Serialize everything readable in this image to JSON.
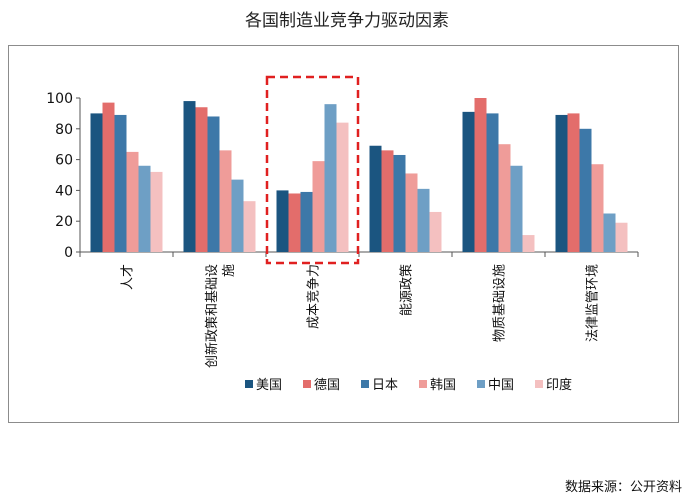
{
  "title": "各国制造业竞争力驱动因素",
  "source": "数据来源：公开资料",
  "chart_data": {
    "type": "bar",
    "categories": [
      "人才",
      "创新政策和基础设施",
      "成本竞争力",
      "能源政策",
      "物质基础设施",
      "法律监管环境"
    ],
    "category_labels": [
      [
        "人才"
      ],
      [
        "创新政策和基础设",
        "施"
      ],
      [
        "成本竞争力"
      ],
      [
        "能源政策"
      ],
      [
        "物质基础设施"
      ],
      [
        "法律监管环境"
      ]
    ],
    "series": [
      {
        "name": "美国",
        "color": "#1b5580",
        "values": [
          90,
          98,
          40,
          69,
          91,
          89
        ]
      },
      {
        "name": "德国",
        "color": "#e36d6b",
        "values": [
          97,
          94,
          38,
          66,
          100,
          90
        ]
      },
      {
        "name": "日本",
        "color": "#3d78a8",
        "values": [
          89,
          88,
          39,
          63,
          90,
          80
        ]
      },
      {
        "name": "韩国",
        "color": "#ef9c99",
        "values": [
          65,
          66,
          59,
          51,
          70,
          57
        ]
      },
      {
        "name": "中国",
        "color": "#6e9fc5",
        "values": [
          56,
          47,
          96,
          41,
          56,
          25
        ]
      },
      {
        "name": "印度",
        "color": "#f4c0c0",
        "values": [
          52,
          33,
          84,
          26,
          11,
          19
        ]
      }
    ],
    "ylim": [
      0,
      100
    ],
    "yticks": [
      0,
      20,
      40,
      60,
      80,
      100
    ],
    "grid": false,
    "legend_position": "bottom",
    "highlight_category": "成本竞争力",
    "highlight_color": "#e02020"
  }
}
